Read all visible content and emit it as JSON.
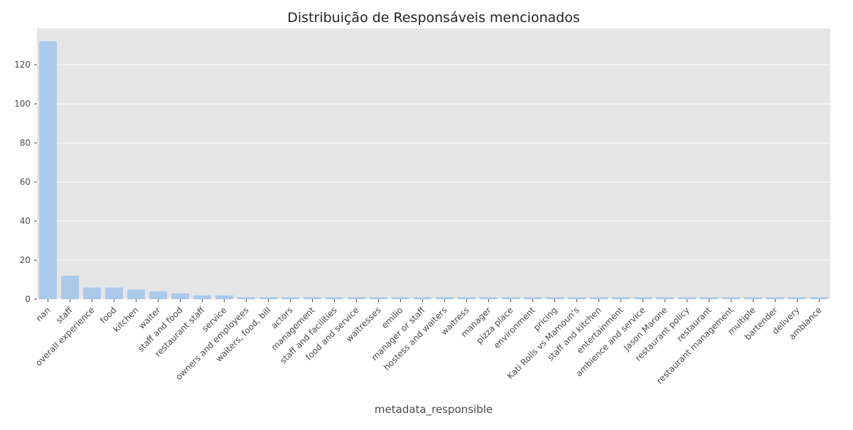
{
  "chart_data": {
    "type": "bar",
    "title": "Distribuição de Responsáveis mencionados",
    "xlabel": "metadata_responsible",
    "ylabel": "",
    "ylim": [
      0,
      138.6
    ],
    "yticks": [
      0,
      20,
      40,
      60,
      80,
      100,
      120
    ],
    "grid": true,
    "colors": {
      "bar": "#abc9ea",
      "plot_background": "#e5e5e5",
      "grid": "#ffffff",
      "text": "#4a4a4a",
      "title": "#222222"
    },
    "categories": [
      "nan",
      "staff",
      "overall experience",
      "food",
      "kitchen",
      "waiter",
      "staff and food",
      "restaurant staff",
      "service",
      "owners and employees",
      "waiters, food, bill",
      "actors",
      "management",
      "staff and facilities",
      "food and service",
      "waitresses",
      "emilio",
      "manager or staff",
      "hostess and waiters",
      "waitress",
      "manager",
      "pizza place",
      "environment",
      "pricing",
      "Kati Rolls vs Mamoun's",
      "staff and kitchen",
      "entertainment",
      "ambience and service",
      "Jason Marone",
      "restaurant policy",
      "restaurant",
      "restaurant management",
      "multiple",
      "bartender",
      "delivery",
      "ambiance"
    ],
    "values": [
      132,
      12,
      6,
      6,
      5,
      4,
      3,
      2,
      2,
      1,
      1,
      1,
      1,
      1,
      1,
      1,
      1,
      1,
      1,
      1,
      1,
      1,
      1,
      1,
      1,
      1,
      1,
      1,
      1,
      1,
      1,
      1,
      1,
      1,
      1,
      1
    ]
  }
}
